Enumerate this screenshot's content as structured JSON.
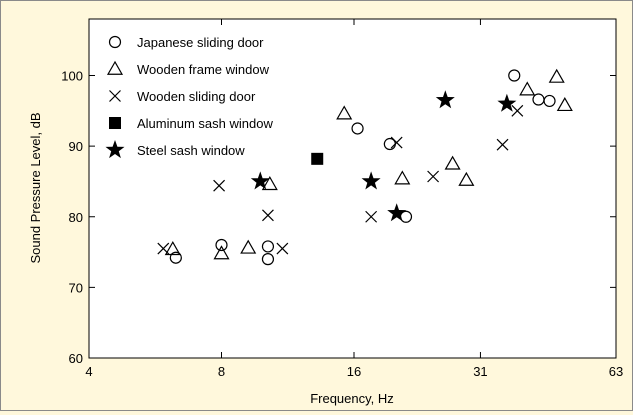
{
  "chart_data": {
    "type": "scatter",
    "xlabel": "Frequency, Hz",
    "ylabel": "Sound Pressure Level, dB",
    "x_scale": "log2",
    "xlim": [
      4,
      63
    ],
    "ylim": [
      60,
      108
    ],
    "x_ticks": [
      4,
      8,
      16,
      31,
      63
    ],
    "y_ticks": [
      60,
      70,
      80,
      90,
      100
    ],
    "legend_position": "top-left",
    "series": [
      {
        "name": "Japanese sliding door",
        "marker": "circle",
        "points": [
          {
            "x": 6.3,
            "y": 74.2
          },
          {
            "x": 8,
            "y": 76
          },
          {
            "x": 10.2,
            "y": 75.8
          },
          {
            "x": 10.2,
            "y": 74
          },
          {
            "x": 16.3,
            "y": 92.5
          },
          {
            "x": 19.3,
            "y": 90.3
          },
          {
            "x": 21,
            "y": 80
          },
          {
            "x": 37,
            "y": 100
          },
          {
            "x": 42,
            "y": 96.6
          },
          {
            "x": 44.5,
            "y": 96.4
          }
        ]
      },
      {
        "name": "Wooden frame window",
        "marker": "triangle",
        "points": [
          {
            "x": 6.2,
            "y": 75.4
          },
          {
            "x": 8,
            "y": 74.8
          },
          {
            "x": 9.2,
            "y": 75.6
          },
          {
            "x": 10.3,
            "y": 84.6
          },
          {
            "x": 15.2,
            "y": 94.6
          },
          {
            "x": 20.6,
            "y": 85.4
          },
          {
            "x": 26.8,
            "y": 87.5
          },
          {
            "x": 28.8,
            "y": 85.2
          },
          {
            "x": 39.6,
            "y": 98
          },
          {
            "x": 46.2,
            "y": 99.8
          },
          {
            "x": 48.2,
            "y": 95.8
          }
        ]
      },
      {
        "name": "Wooden sliding door",
        "marker": "x",
        "points": [
          {
            "x": 5.9,
            "y": 75.5
          },
          {
            "x": 7.9,
            "y": 84.4
          },
          {
            "x": 10.2,
            "y": 80.2
          },
          {
            "x": 11,
            "y": 75.5
          },
          {
            "x": 17.5,
            "y": 80
          },
          {
            "x": 20,
            "y": 90.5
          },
          {
            "x": 24.2,
            "y": 85.7
          },
          {
            "x": 34.8,
            "y": 90.2
          },
          {
            "x": 37.6,
            "y": 95
          }
        ]
      },
      {
        "name": "Aluminum sash window",
        "marker": "square",
        "points": [
          {
            "x": 13.2,
            "y": 88.2
          }
        ]
      },
      {
        "name": "Steel sash window",
        "marker": "star",
        "points": [
          {
            "x": 9.8,
            "y": 85
          },
          {
            "x": 17.5,
            "y": 85
          },
          {
            "x": 20,
            "y": 80.5
          },
          {
            "x": 25.8,
            "y": 96.5
          },
          {
            "x": 35.6,
            "y": 96
          }
        ]
      }
    ]
  }
}
